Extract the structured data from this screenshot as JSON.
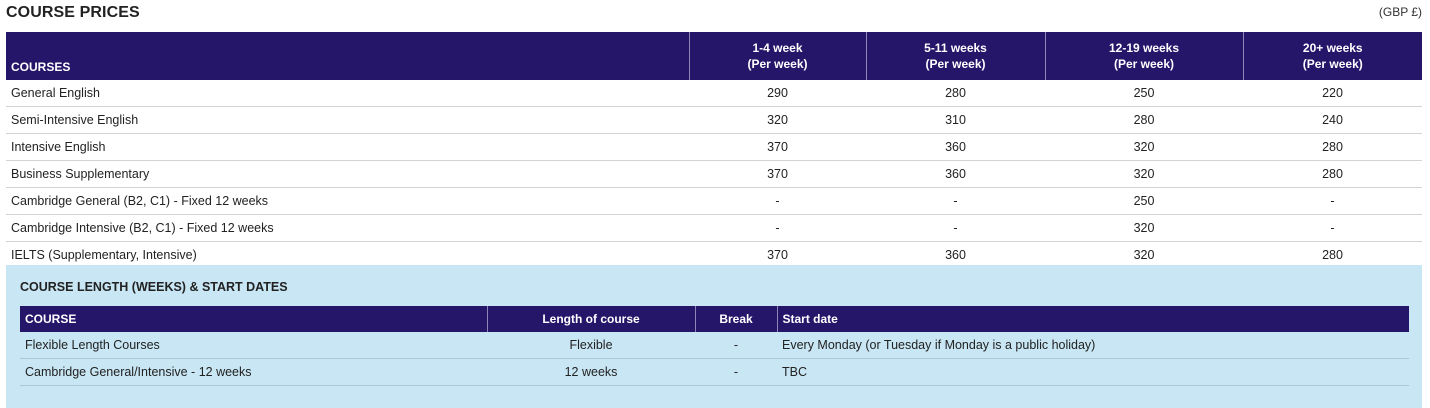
{
  "header": {
    "title": "COURSE PRICES",
    "currency": "(GBP £)"
  },
  "prices": {
    "col_course": "COURSES",
    "columns": [
      {
        "range": "1-4 week",
        "unit": "(Per week)"
      },
      {
        "range": "5-11 weeks",
        "unit": "(Per week)"
      },
      {
        "range": "12-19 weeks",
        "unit": "(Per week)"
      },
      {
        "range": "20+ weeks",
        "unit": "(Per week)"
      }
    ],
    "rows": [
      {
        "course": "General English",
        "values": [
          "290",
          "280",
          "250",
          "220"
        ]
      },
      {
        "course": "Semi-Intensive English",
        "values": [
          "320",
          "310",
          "280",
          "240"
        ]
      },
      {
        "course": "Intensive English",
        "values": [
          "370",
          "360",
          "320",
          "280"
        ]
      },
      {
        "course": "Business Supplementary",
        "values": [
          "370",
          "360",
          "320",
          "280"
        ]
      },
      {
        "course": "Cambridge General (B2, C1) - Fixed 12 weeks",
        "values": [
          "-",
          "-",
          "250",
          "-"
        ]
      },
      {
        "course": "Cambridge Intensive (B2, C1) - Fixed 12 weeks",
        "values": [
          "-",
          "-",
          "320",
          "-"
        ]
      },
      {
        "course": "IELTS (Supplementary, Intensive)",
        "values": [
          "370",
          "360",
          "320",
          "280"
        ]
      }
    ]
  },
  "schedule": {
    "title": "COURSE LENGTH (WEEKS) & START DATES",
    "headers": {
      "course": "COURSE",
      "length": "Length of course",
      "break": "Break",
      "start": "Start date"
    },
    "rows": [
      {
        "course": "Flexible Length Courses",
        "length": "Flexible",
        "break": "-",
        "start": "Every Monday (or Tuesday if Monday is a public holiday)"
      },
      {
        "course": "Cambridge General/Intensive - 12 weeks",
        "length": "12 weeks",
        "break": "-",
        "start": "TBC"
      }
    ]
  }
}
